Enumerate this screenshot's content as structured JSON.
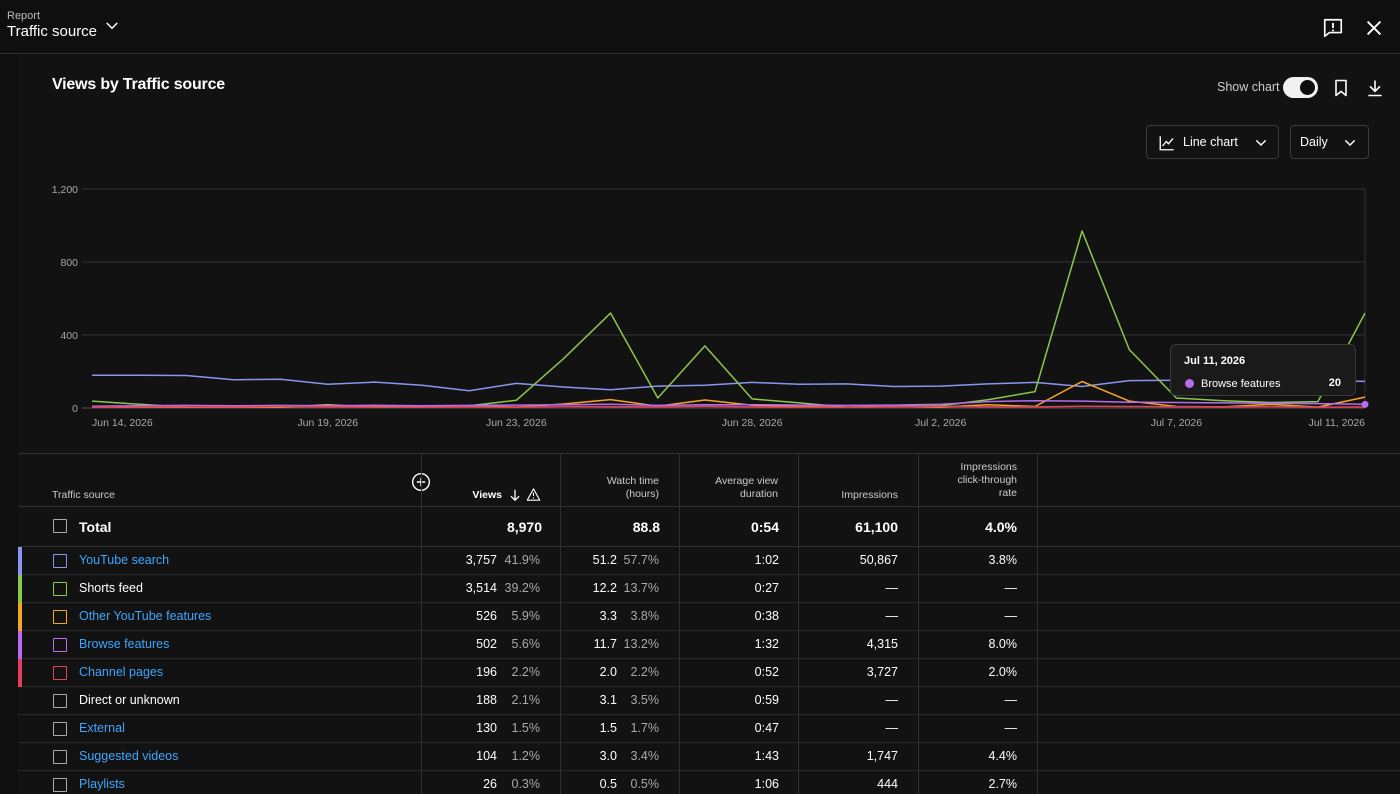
{
  "header": {
    "report_label": "Report",
    "title": "Traffic source"
  },
  "panel": {
    "title": "Views by Traffic source",
    "show_chart_label": "Show chart",
    "show_chart_on": true,
    "chart_type_label": "Line chart",
    "interval_label": "Daily"
  },
  "chart_data": {
    "type": "line",
    "title": "",
    "ylim": [
      0,
      1200
    ],
    "y_ticks": [
      "1,200",
      "800",
      "400",
      "0"
    ],
    "x_tick_labels": [
      "Jun 14, 2026",
      "Jun 19, 2026",
      "Jun 23, 2026",
      "Jun 28, 2026",
      "Jul 2, 2026",
      "Jul 7, 2026",
      "Jul 11, 2026"
    ],
    "x_start": "2026-06-14",
    "x_end": "2026-07-11",
    "grid": true,
    "series": [
      {
        "name": "YouTube search",
        "color": "#8a95f0",
        "values": [
          180,
          180,
          178,
          155,
          158,
          130,
          142,
          125,
          95,
          135,
          115,
          100,
          120,
          125,
          140,
          130,
          132,
          118,
          120,
          132,
          140,
          118,
          150,
          152,
          178,
          182,
          150,
          146
        ]
      },
      {
        "name": "Shorts feed",
        "color": "#8ac84a",
        "values": [
          38,
          20,
          5,
          5,
          5,
          10,
          8,
          10,
          12,
          42,
          270,
          520,
          55,
          340,
          50,
          28,
          5,
          8,
          12,
          45,
          90,
          970,
          320,
          55,
          40,
          30,
          35,
          520
        ]
      },
      {
        "name": "Other YouTube features",
        "color": "#f5a623",
        "values": [
          6,
          4,
          4,
          4,
          5,
          18,
          5,
          6,
          12,
          5,
          22,
          46,
          10,
          44,
          15,
          8,
          4,
          8,
          5,
          18,
          8,
          145,
          38,
          8,
          6,
          20,
          5,
          60
        ]
      },
      {
        "name": "Browse features",
        "color": "#b86cf0",
        "values": [
          10,
          12,
          14,
          12,
          14,
          12,
          15,
          12,
          14,
          16,
          18,
          20,
          14,
          18,
          18,
          16,
          14,
          16,
          20,
          35,
          40,
          38,
          32,
          30,
          28,
          26,
          24,
          20
        ]
      },
      {
        "name": "Channel pages",
        "color": "#e0405a",
        "values": [
          4,
          5,
          6,
          5,
          8,
          6,
          5,
          4,
          6,
          5,
          8,
          7,
          6,
          9,
          6,
          5,
          4,
          6,
          8,
          7,
          6,
          10,
          8,
          7,
          6,
          8,
          5,
          6
        ]
      }
    ],
    "tooltip": {
      "date": "Jul 11, 2026",
      "series": "Browse features",
      "value": "20"
    }
  },
  "table": {
    "headers": {
      "source": "Traffic source",
      "views": "Views",
      "watch_time_1": "Watch time",
      "watch_time_2": "(hours)",
      "avd_1": "Average view",
      "avd_2": "duration",
      "impressions": "Impressions",
      "ctr_1": "Impressions",
      "ctr_2": "click-through",
      "ctr_3": "rate"
    },
    "total": {
      "label": "Total",
      "views": "8,970",
      "watch": "88.8",
      "avd": "0:54",
      "impressions": "61,100",
      "ctr": "4.0%"
    },
    "rows": [
      {
        "source": "YouTube search",
        "link": true,
        "color": "#8a95f0",
        "views": "3,757",
        "views_pct": "41.9%",
        "watch": "51.2",
        "watch_pct": "57.7%",
        "avd": "1:02",
        "impressions": "50,867",
        "ctr": "3.8%"
      },
      {
        "source": "Shorts feed",
        "link": false,
        "color": "#8ac84a",
        "views": "3,514",
        "views_pct": "39.2%",
        "watch": "12.2",
        "watch_pct": "13.7%",
        "avd": "0:27",
        "impressions": "—",
        "ctr": "—"
      },
      {
        "source": "Other YouTube features",
        "link": true,
        "color": "#f5a623",
        "views": "526",
        "views_pct": "5.9%",
        "watch": "3.3",
        "watch_pct": "3.8%",
        "avd": "0:38",
        "impressions": "—",
        "ctr": "—"
      },
      {
        "source": "Browse features",
        "link": true,
        "color": "#b86cf0",
        "views": "502",
        "views_pct": "5.6%",
        "watch": "11.7",
        "watch_pct": "13.2%",
        "avd": "1:32",
        "impressions": "4,315",
        "ctr": "8.0%"
      },
      {
        "source": "Channel pages",
        "link": true,
        "color": "#e0405a",
        "views": "196",
        "views_pct": "2.2%",
        "watch": "2.0",
        "watch_pct": "2.2%",
        "avd": "0:52",
        "impressions": "3,727",
        "ctr": "2.0%"
      },
      {
        "source": "Direct or unknown",
        "link": false,
        "color": "",
        "views": "188",
        "views_pct": "2.1%",
        "watch": "3.1",
        "watch_pct": "3.5%",
        "avd": "0:59",
        "impressions": "—",
        "ctr": "—"
      },
      {
        "source": "External",
        "link": true,
        "color": "",
        "views": "130",
        "views_pct": "1.5%",
        "watch": "1.5",
        "watch_pct": "1.7%",
        "avd": "0:47",
        "impressions": "—",
        "ctr": "—"
      },
      {
        "source": "Suggested videos",
        "link": true,
        "color": "",
        "views": "104",
        "views_pct": "1.2%",
        "watch": "3.0",
        "watch_pct": "3.4%",
        "avd": "1:43",
        "impressions": "1,747",
        "ctr": "4.4%"
      },
      {
        "source": "Playlists",
        "link": true,
        "color": "",
        "views": "26",
        "views_pct": "0.3%",
        "watch": "0.5",
        "watch_pct": "0.5%",
        "avd": "1:06",
        "impressions": "444",
        "ctr": "2.7%"
      }
    ]
  }
}
